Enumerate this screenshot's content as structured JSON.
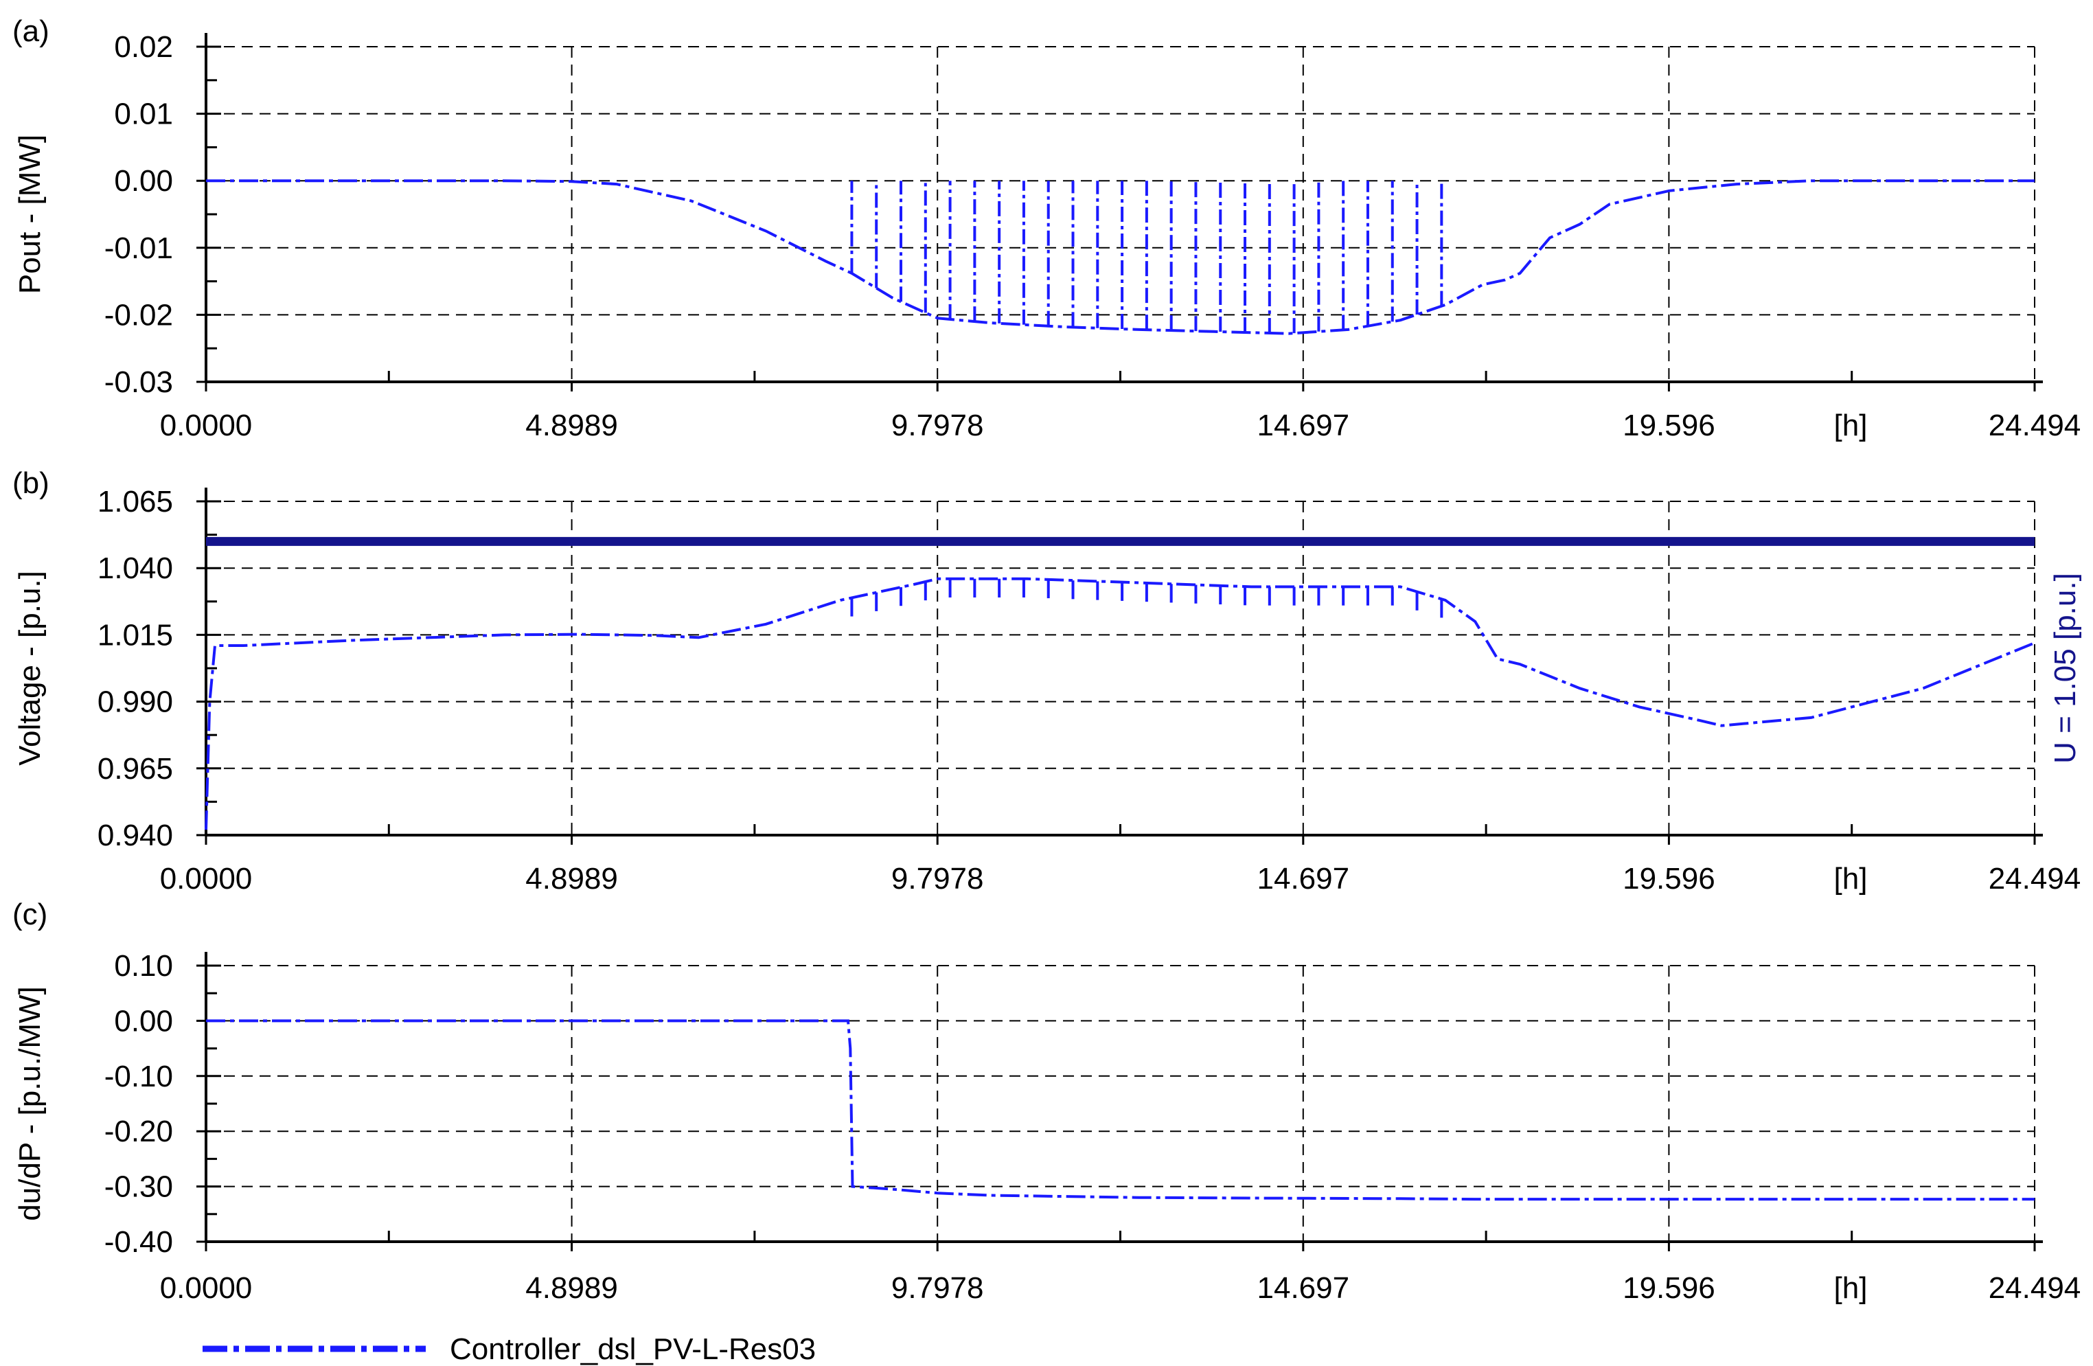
{
  "legend": {
    "label": "Controller_dsl_PV-L-Res03",
    "color": "#1a1aff"
  },
  "colors": {
    "series": "#1a1aff",
    "limit": "#14148c",
    "grid": "#000000"
  },
  "chart_data": [
    {
      "type": "line",
      "panel_label": "(a)",
      "ylabel": "Pout - [MW]",
      "xunit": "[h]",
      "xlim": [
        0,
        24.494
      ],
      "ylim": [
        -0.03,
        0.02
      ],
      "xticks": [
        "0.0000",
        "4.8989",
        "9.7978",
        "14.697",
        "19.596",
        "24.494"
      ],
      "yticks": [
        "0.02",
        "0.01",
        "0.00",
        "-0.01",
        "-0.02",
        "-0.03"
      ],
      "grid": true,
      "series": [
        {
          "x": [
            0,
            2,
            4,
            4.9,
            5.5,
            6.5,
            7.5,
            8.3,
            8.65,
            9.2,
            9.8,
            10.5,
            11.5,
            12.5,
            13.5,
            14.5,
            15.3,
            16.0,
            16.6,
            17.1,
            17.4,
            17.6,
            18.0,
            18.4,
            18.8,
            19.6,
            20.5,
            21.5,
            22,
            24.494
          ],
          "y": [
            0,
            0,
            0,
            -0.0001,
            -0.0005,
            -0.003,
            -0.0075,
            -0.012,
            -0.0138,
            -0.0175,
            -0.0205,
            -0.0212,
            -0.0218,
            -0.0222,
            -0.0225,
            -0.0228,
            -0.0222,
            -0.0208,
            -0.0185,
            -0.0155,
            -0.0148,
            -0.0138,
            -0.0085,
            -0.0065,
            -0.0035,
            -0.0015,
            -0.0005,
            0,
            0,
            0
          ]
        }
      ],
      "spikes": {
        "x_start": 8.65,
        "x_end": 16.55,
        "count": 25,
        "top": 0.0
      }
    },
    {
      "type": "line",
      "panel_label": "(b)",
      "ylabel": "Voltage - [p.u.]",
      "y2label": "U = 1.05 [p.u.]",
      "xunit": "[h]",
      "xlim": [
        0,
        24.494
      ],
      "ylim": [
        0.94,
        1.065
      ],
      "xticks": [
        "0.0000",
        "4.8989",
        "9.7978",
        "14.697",
        "19.596",
        "24.494"
      ],
      "yticks": [
        "1.065",
        "1.040",
        "1.015",
        "0.990",
        "0.965",
        "0.940"
      ],
      "grid": true,
      "limit_line": 1.05,
      "series": [
        {
          "x": [
            0,
            0.05,
            0.12,
            0.5,
            2,
            3,
            4,
            5,
            6,
            6.6,
            7.5,
            8.5,
            9.5,
            9.8,
            11,
            12,
            13,
            14,
            15,
            16,
            16.6,
            17,
            17.3,
            17.6,
            18.4,
            19.2,
            20,
            20.3,
            21.5,
            23,
            24.494
          ],
          "y": [
            0.942,
            0.99,
            1.011,
            1.011,
            1.013,
            1.014,
            1.015,
            1.0152,
            1.0148,
            1.014,
            1.019,
            1.028,
            1.034,
            1.036,
            1.036,
            1.035,
            1.034,
            1.033,
            1.033,
            1.033,
            1.028,
            1.02,
            1.006,
            1.004,
            0.995,
            0.988,
            0.983,
            0.981,
            0.984,
            0.995,
            1.012
          ]
        }
      ],
      "spikes": {
        "x_start": 8.65,
        "x_end": 16.55,
        "count": 25,
        "depth": 0.007
      }
    },
    {
      "type": "line",
      "panel_label": "(c)",
      "ylabel": "du/dP - [p.u./MW]",
      "xunit": "[h]",
      "xlim": [
        0,
        24.494
      ],
      "ylim": [
        -0.4,
        0.1
      ],
      "xticks": [
        "0.0000",
        "4.8989",
        "9.7978",
        "14.697",
        "19.596",
        "24.494"
      ],
      "yticks": [
        "0.10",
        "0.00",
        "-0.10",
        "-0.20",
        "-0.30",
        "-0.40"
      ],
      "grid": true,
      "series": [
        {
          "x": [
            0,
            8.6,
            8.63,
            8.66,
            9.2,
            9.8,
            10.5,
            11.5,
            12.5,
            14,
            16,
            17,
            24.494
          ],
          "y": [
            0,
            0,
            -0.05,
            -0.3,
            -0.305,
            -0.312,
            -0.316,
            -0.318,
            -0.32,
            -0.321,
            -0.322,
            -0.323,
            -0.323
          ]
        }
      ]
    }
  ]
}
